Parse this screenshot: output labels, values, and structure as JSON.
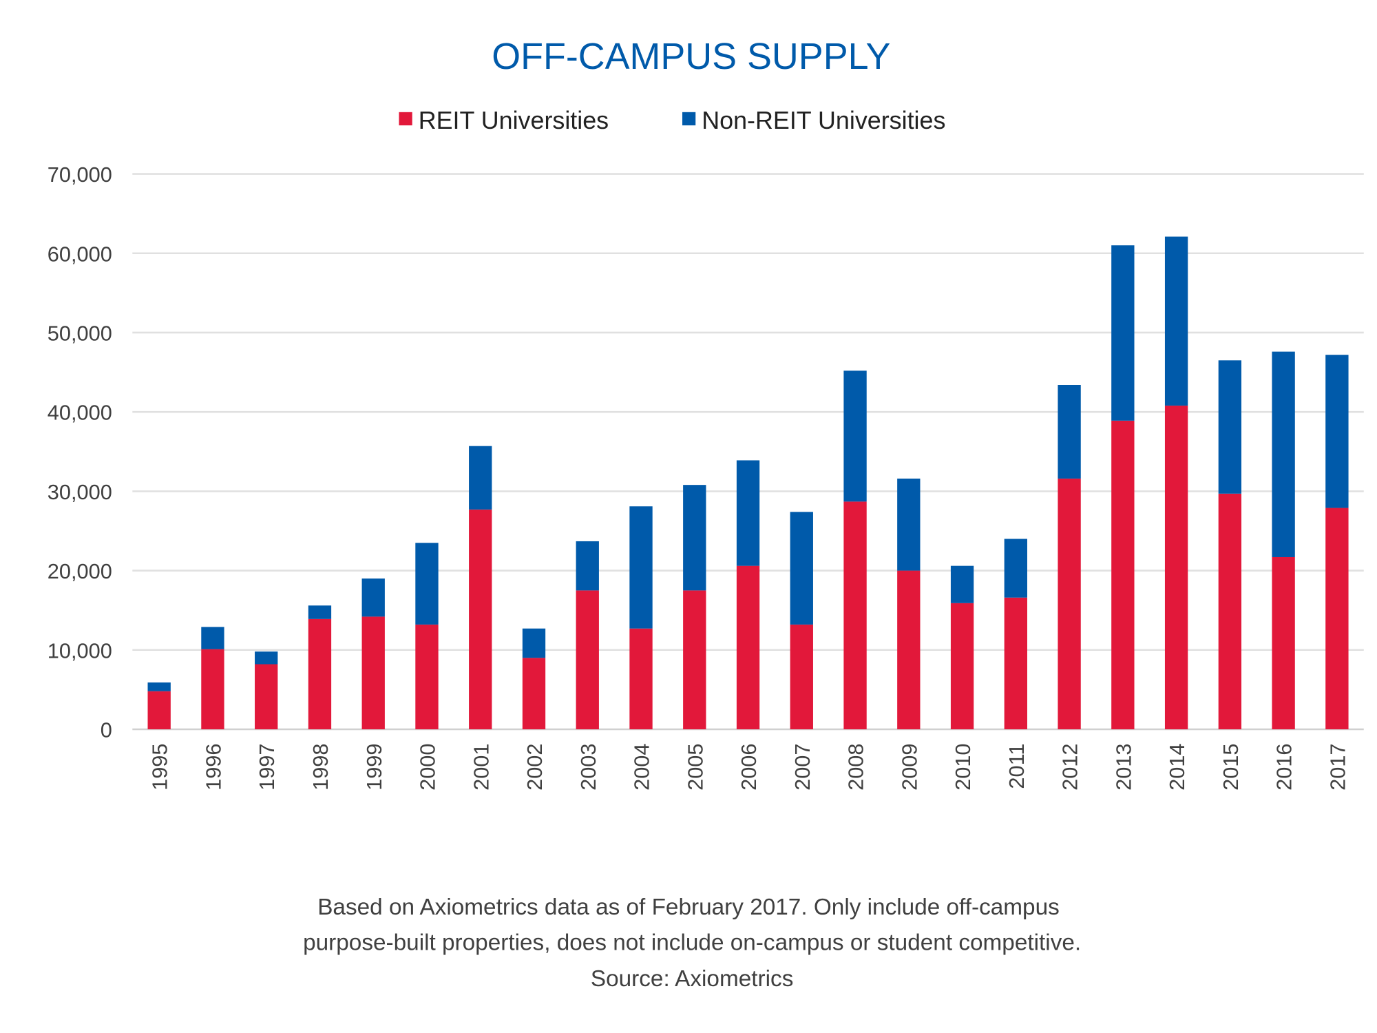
{
  "chart_data": {
    "type": "bar",
    "stacked": true,
    "title": "OFF-CAMPUS SUPPLY",
    "xlabel": "",
    "ylabel": "",
    "ylim": [
      0,
      70000
    ],
    "yticks": [
      "0",
      "10,000",
      "20,000",
      "30,000",
      "40,000",
      "50,000",
      "60,000",
      "70,000"
    ],
    "grid": true,
    "legend_placement": "top",
    "categories": [
      "1995",
      "1996",
      "1997",
      "1998",
      "1999",
      "2000",
      "2001",
      "2002",
      "2003",
      "2004",
      "2005",
      "2006",
      "2007",
      "2008",
      "2009",
      "2010",
      "2011",
      "2012",
      "2013",
      "2014",
      "2015",
      "2016",
      "2017"
    ],
    "series": [
      {
        "name": "REIT Universities",
        "color": "#e2183a",
        "values": [
          4800,
          10100,
          8200,
          13900,
          14200,
          13200,
          27700,
          9000,
          17500,
          12700,
          17500,
          20600,
          13200,
          28700,
          20000,
          15900,
          16600,
          31600,
          38900,
          40800,
          29700,
          21700,
          27900
        ]
      },
      {
        "name": "Non-REIT Universities",
        "color": "#005aaa",
        "values": [
          1100,
          2800,
          1600,
          1700,
          4800,
          10300,
          8000,
          3700,
          6200,
          15400,
          13300,
          13300,
          14200,
          16500,
          11600,
          4700,
          7400,
          11800,
          22100,
          21300,
          16800,
          25900,
          19300
        ]
      }
    ],
    "notes": [
      "Based on Axiometrics data as of February 2017. Only include off-campus",
      "purpose-built properties, does not include on-campus or student competitive.",
      "Source: Axiometrics"
    ],
    "title_color": "#005aaa"
  }
}
